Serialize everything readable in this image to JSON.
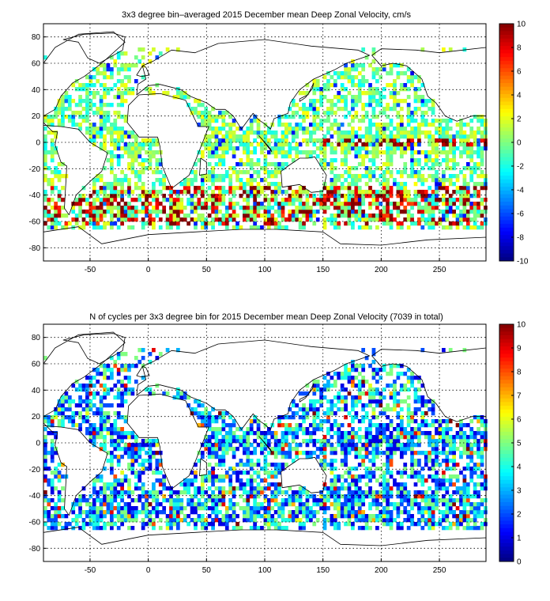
{
  "chart_data": [
    {
      "type": "heatmap",
      "title": "3x3 degree bin–averaged 2015 December mean Deep Zonal Velocity, cm/s",
      "x_ticks": [
        -50,
        0,
        50,
        100,
        150,
        200,
        250
      ],
      "y_ticks": [
        -80,
        -60,
        -40,
        -20,
        0,
        20,
        40,
        60,
        80
      ],
      "xlim": [
        -90,
        290
      ],
      "ylim": [
        -90,
        90
      ],
      "colorbar_ticks": [
        10,
        8,
        6,
        4,
        2,
        0,
        -2,
        -4,
        -6,
        -8,
        -10
      ],
      "clim": [
        -10,
        10
      ],
      "colormap": "jet",
      "grid": true,
      "bin_size_deg": 3
    },
    {
      "type": "heatmap",
      "title": "N of cycles per 3x3 degree bin for 2015 December mean Deep Zonal Velocity (7039 in total)",
      "x_ticks": [
        -50,
        0,
        50,
        100,
        150,
        200,
        250
      ],
      "y_ticks": [
        -80,
        -60,
        -40,
        -20,
        0,
        20,
        40,
        60,
        80
      ],
      "xlim": [
        -90,
        290
      ],
      "ylim": [
        -90,
        90
      ],
      "colorbar_ticks": [
        10,
        9,
        8,
        7,
        6,
        5,
        4,
        3,
        2,
        1,
        0
      ],
      "clim": [
        0,
        10
      ],
      "colormap": "jet",
      "grid": true,
      "bin_size_deg": 3
    }
  ]
}
